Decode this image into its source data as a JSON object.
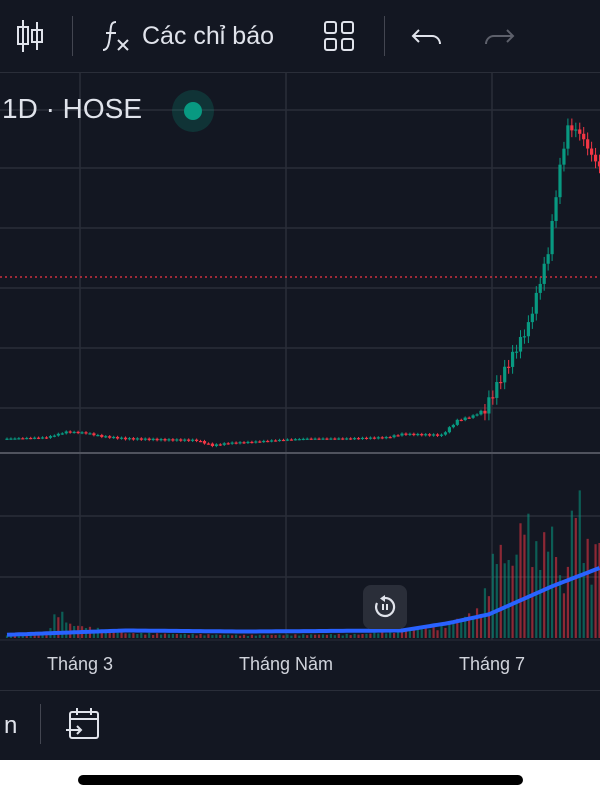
{
  "toolbar": {
    "candles_icon": "candlestick-icon",
    "indicators_icon": "fx-icon",
    "indicators_label": "Các chỉ báo",
    "layout_icon": "grid-icon",
    "undo_icon": "undo-icon",
    "redo_icon": "redo-icon"
  },
  "header": {
    "symbol_label": "1D · HOSE",
    "status_color": "#089981"
  },
  "colors": {
    "up": "#089981",
    "down": "#f23645",
    "volume_ma": "#2962ff",
    "background": "#131722",
    "grid": "#2a2e39"
  },
  "bottom_bar": {
    "partial_text": "n",
    "goto_date_icon": "calendar-goto-icon"
  },
  "chart_data": {
    "type": "candlestick",
    "interval": "1D",
    "exchange": "HOSE",
    "x_tick_labels": [
      {
        "label": "Tháng 3",
        "index": 20
      },
      {
        "label": "Tháng Năm",
        "index": 73
      },
      {
        "label": "Tháng 7",
        "index": 126
      }
    ],
    "price_panel": {
      "y_axis_labels_visible": false,
      "last_price_line": true,
      "close_path": [
        {
          "i": 0,
          "c": 10
        },
        {
          "i": 10,
          "c": 11
        },
        {
          "i": 15,
          "c": 16
        },
        {
          "i": 20,
          "c": 15
        },
        {
          "i": 24,
          "c": 12
        },
        {
          "i": 30,
          "c": 10
        },
        {
          "i": 40,
          "c": 9
        },
        {
          "i": 48,
          "c": 8.5
        },
        {
          "i": 52,
          "c": 4
        },
        {
          "i": 56,
          "c": 6
        },
        {
          "i": 62,
          "c": 7
        },
        {
          "i": 70,
          "c": 9
        },
        {
          "i": 76,
          "c": 10
        },
        {
          "i": 86,
          "c": 10
        },
        {
          "i": 96,
          "c": 11
        },
        {
          "i": 100,
          "c": 14
        },
        {
          "i": 110,
          "c": 13
        },
        {
          "i": 114,
          "c": 26
        },
        {
          "i": 118,
          "c": 30
        },
        {
          "i": 121,
          "c": 36
        },
        {
          "i": 126,
          "c": 70
        },
        {
          "i": 132,
          "c": 110
        },
        {
          "i": 137,
          "c": 175
        },
        {
          "i": 140,
          "c": 250
        },
        {
          "i": 142,
          "c": 285
        },
        {
          "i": 145,
          "c": 280
        },
        {
          "i": 148,
          "c": 260
        },
        {
          "i": 150,
          "c": 250
        }
      ],
      "ylim": [
        0,
        300
      ]
    },
    "volume_panel": {
      "volume_path": [
        {
          "i": 0,
          "v": 4
        },
        {
          "i": 10,
          "v": 6
        },
        {
          "i": 13,
          "v": 30
        },
        {
          "i": 16,
          "v": 14
        },
        {
          "i": 30,
          "v": 5
        },
        {
          "i": 60,
          "v": 3
        },
        {
          "i": 90,
          "v": 4
        },
        {
          "i": 110,
          "v": 12
        },
        {
          "i": 120,
          "v": 30
        },
        {
          "i": 124,
          "v": 95
        },
        {
          "i": 128,
          "v": 75
        },
        {
          "i": 131,
          "v": 130
        },
        {
          "i": 134,
          "v": 90
        },
        {
          "i": 138,
          "v": 110
        },
        {
          "i": 141,
          "v": 45
        },
        {
          "i": 144,
          "v": 160
        },
        {
          "i": 148,
          "v": 70
        },
        {
          "i": 150,
          "v": 110
        }
      ],
      "ma_path": [
        {
          "i": 0,
          "v": 3
        },
        {
          "i": 30,
          "v": 7
        },
        {
          "i": 60,
          "v": 6
        },
        {
          "i": 100,
          "v": 7
        },
        {
          "i": 112,
          "v": 14
        },
        {
          "i": 122,
          "v": 22
        },
        {
          "i": 130,
          "v": 35
        },
        {
          "i": 138,
          "v": 48
        },
        {
          "i": 145,
          "v": 58
        },
        {
          "i": 150,
          "v": 65
        }
      ],
      "ylim": [
        0,
        170
      ]
    }
  }
}
